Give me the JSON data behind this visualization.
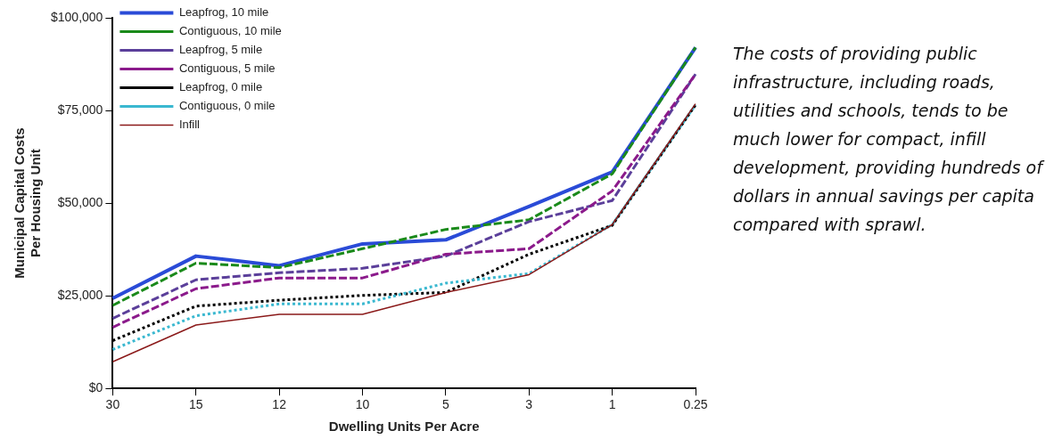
{
  "chart_data": {
    "type": "line",
    "xlabel": "Dwelling Units Per Acre",
    "ylabel": "Municipal Capital Costs Per Housing Unit",
    "categories": [
      "30",
      "15",
      "12",
      "10",
      "5",
      "3",
      "1",
      "0.25"
    ],
    "ylim": [
      0,
      100000
    ],
    "yticks": [
      {
        "value": 0,
        "label": "$0"
      },
      {
        "value": 25000,
        "label": "$25,000"
      },
      {
        "value": 50000,
        "label": "$50,000"
      },
      {
        "value": 75000,
        "label": "$75,000"
      },
      {
        "value": 100000,
        "label": "$100,000"
      }
    ],
    "grid": false,
    "legend": "top left",
    "marker": "none",
    "series": [
      {
        "name": "Leapfrog, 10 mile",
        "color": "#2a4bd7",
        "line_style": "solid",
        "values": [
          24300,
          35700,
          33100,
          39000,
          40100,
          49100,
          58400,
          92000
        ]
      },
      {
        "name": "Contiguous, 10 mile",
        "color": "#1a8a1a",
        "line_style": "dashed",
        "values": [
          22400,
          33800,
          32600,
          37700,
          42900,
          45500,
          57900,
          92000
        ]
      },
      {
        "name": "Leapfrog, 5 mile",
        "color": "#5b3f9a",
        "line_style": "dashed",
        "values": [
          18900,
          29300,
          31200,
          32400,
          35700,
          45000,
          50700,
          84800
        ]
      },
      {
        "name": "Contiguous, 5 mile",
        "color": "#8b1a8b",
        "line_style": "dashed",
        "values": [
          16500,
          26900,
          29800,
          29800,
          36200,
          37700,
          53300,
          84800
        ]
      },
      {
        "name": "Leapfrog, 0 mile",
        "color": "#000000",
        "line_style": "dotted",
        "values": [
          12900,
          22200,
          23800,
          25100,
          25900,
          36200,
          44000,
          76500
        ]
      },
      {
        "name": "Contiguous, 0 mile",
        "color": "#3ab8d0",
        "line_style": "dotted",
        "values": [
          10500,
          19600,
          22800,
          22800,
          28400,
          31000,
          44200,
          76500
        ]
      },
      {
        "name": "Infill",
        "color": "#8b1a1a",
        "line_style": "solid",
        "values": [
          7200,
          17100,
          20000,
          20000,
          25900,
          30700,
          44200,
          76800
        ]
      }
    ],
    "annotations": [
      "The costs of providing public infrastructure, including roads, utilities and schools, tends to be much lower for compact, infill development, providing hundreds of dollars in annual savings per capita compared with sprawl."
    ]
  }
}
